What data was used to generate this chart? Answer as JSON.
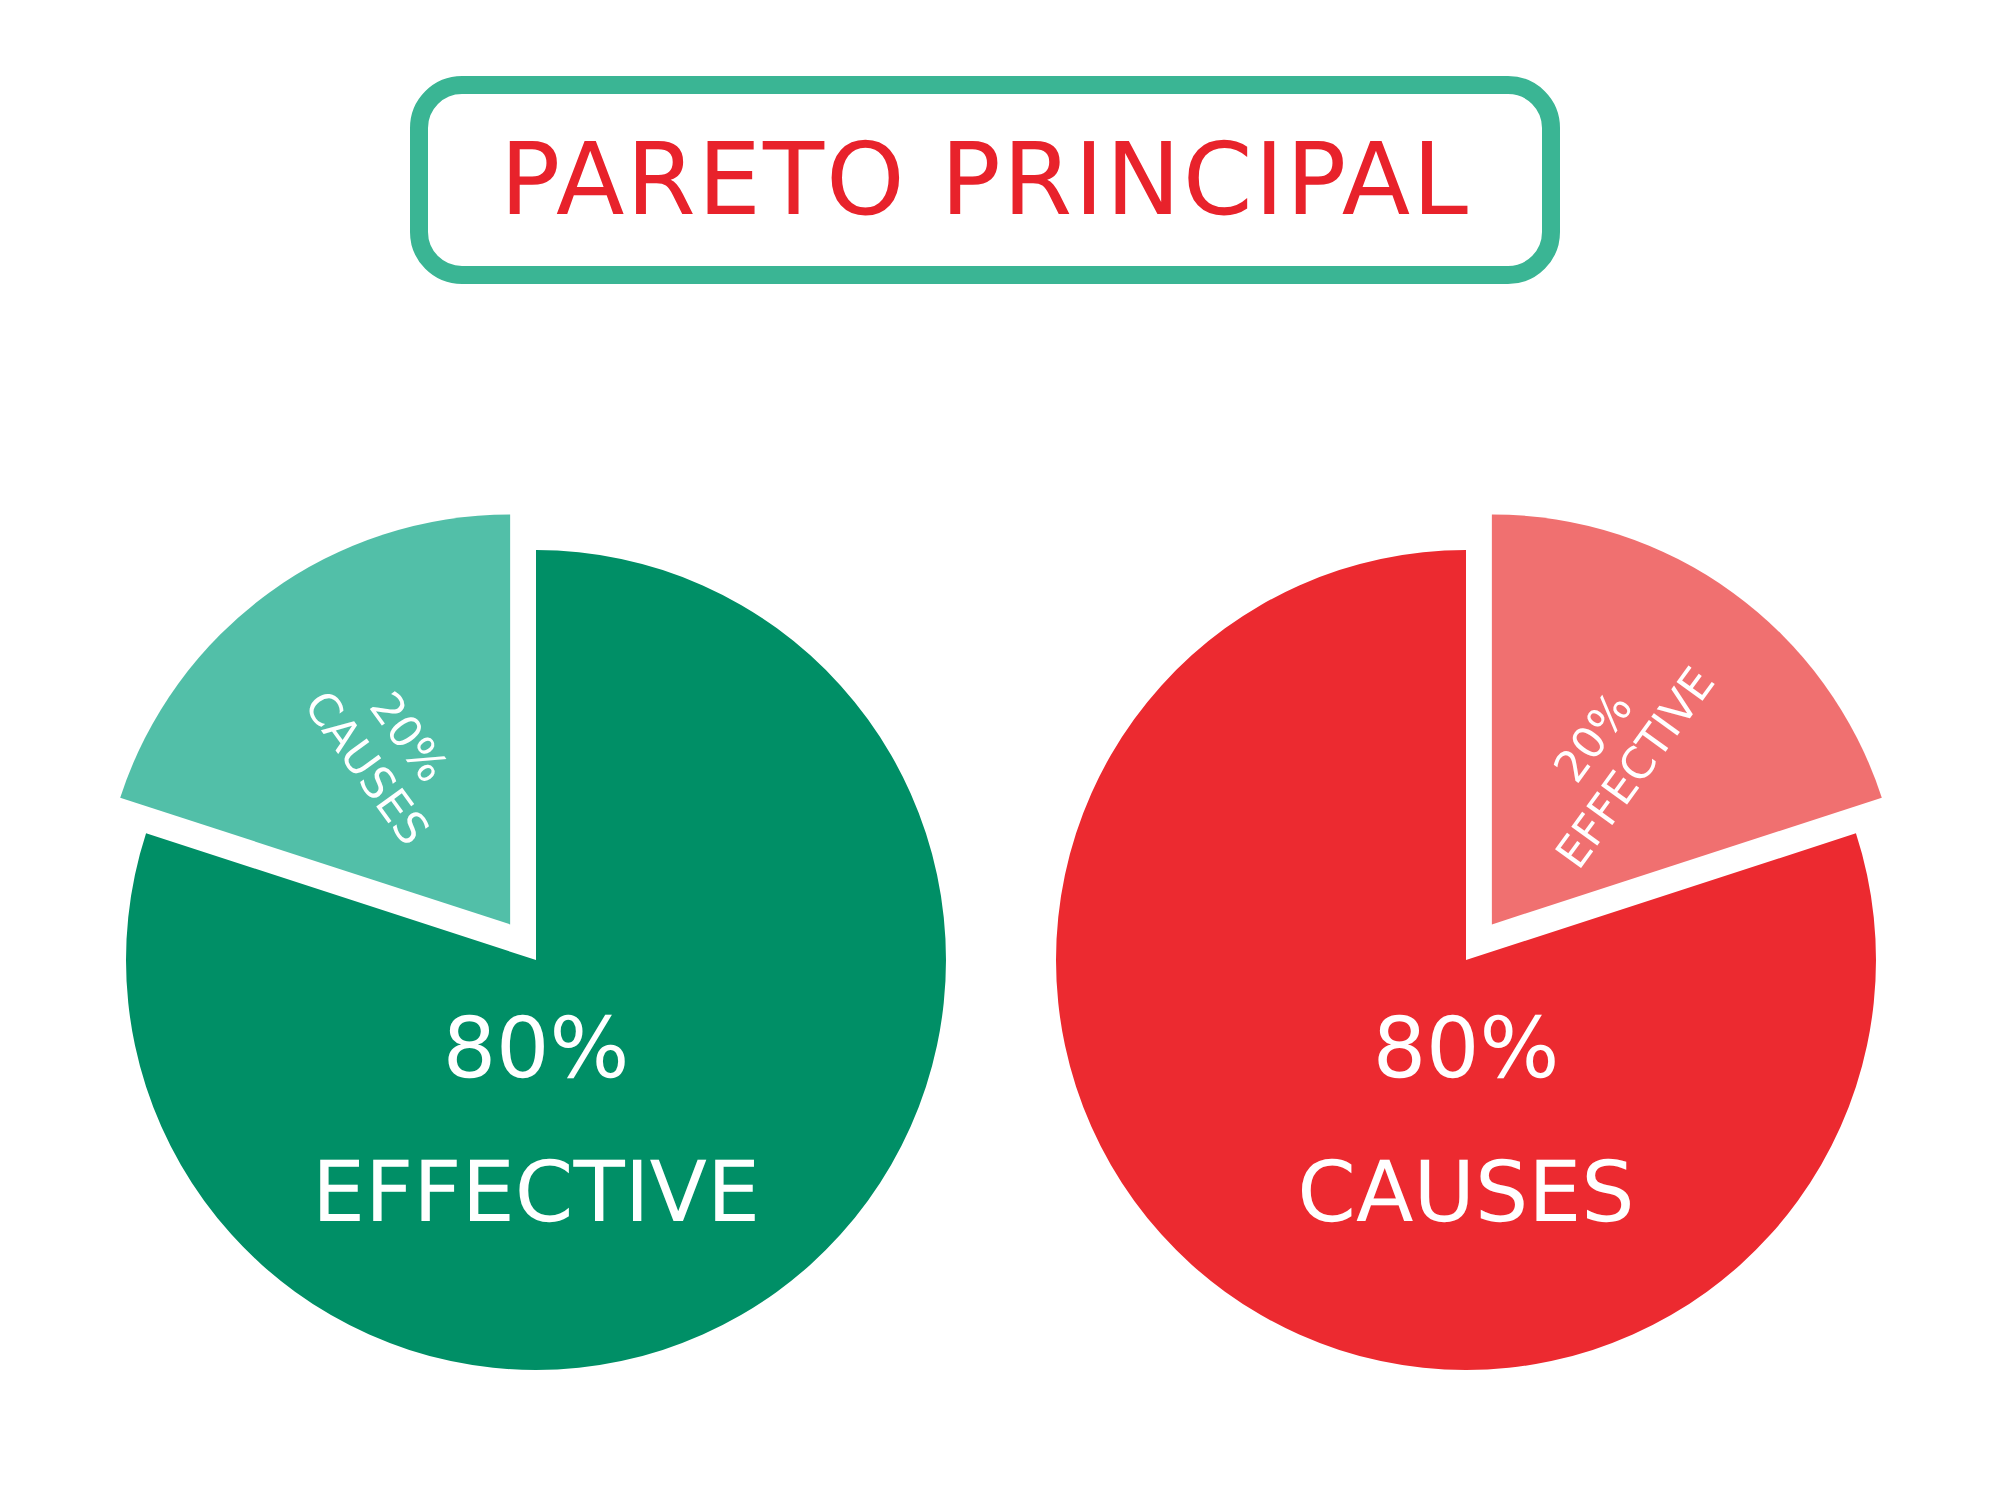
{
  "chart_data": [
    {
      "type": "pie",
      "title": "PARETO PRINCIPAL",
      "categories": [
        "EFFECTIVE",
        "CAUSES"
      ],
      "values": [
        80,
        20
      ],
      "value_labels": [
        "80%",
        "20%"
      ],
      "colors": [
        "#008f66",
        "#52bfa8"
      ],
      "legend": false
    },
    {
      "type": "pie",
      "categories": [
        "EFFECTIVE",
        "CAUSES"
      ],
      "values": [
        20,
        80
      ],
      "value_labels": [
        "20%",
        "80%"
      ],
      "colors": [
        "#f07070",
        "#ec2a30"
      ],
      "legend": false
    }
  ]
}
